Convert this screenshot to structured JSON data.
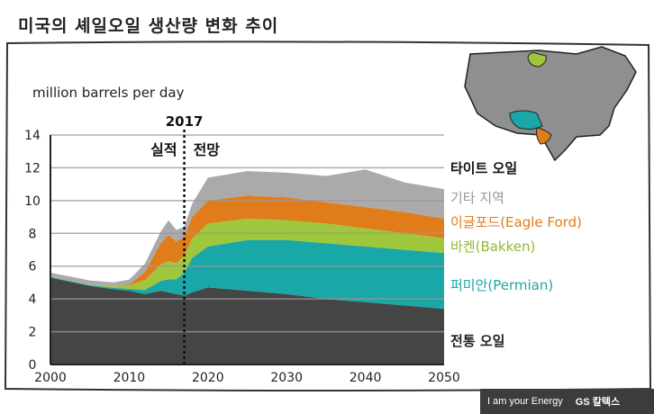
{
  "title": "미국의 셰일오일 생산량 변화 추이",
  "footer": {
    "tagline": "I am your Energy",
    "logo": "GS 칼텍스"
  },
  "chart_data": {
    "type": "area",
    "ylabel": "million barrels per day",
    "xlim": [
      2000,
      2050
    ],
    "ylim": [
      0,
      14
    ],
    "x_ticks": [
      2000,
      2010,
      2020,
      2030,
      2040,
      2050
    ],
    "y_ticks": [
      0,
      2,
      4,
      6,
      8,
      10,
      12,
      14
    ],
    "grid": true,
    "divider": {
      "x": 2017,
      "label": "2017",
      "left_label": "실적",
      "right_label": "전망"
    },
    "x": [
      2000,
      2005,
      2008,
      2010,
      2012,
      2014,
      2015,
      2016,
      2017,
      2018,
      2020,
      2025,
      2030,
      2035,
      2040,
      2045,
      2050
    ],
    "series": [
      {
        "name": "전통 오일",
        "color": "#454545",
        "values": [
          5.3,
          4.8,
          4.6,
          4.5,
          4.3,
          4.5,
          4.4,
          4.3,
          4.2,
          4.4,
          4.7,
          4.5,
          4.3,
          4.0,
          3.8,
          3.6,
          3.4
        ]
      },
      {
        "name": "퍼미안(Permian)",
        "color": "#1aa7a7",
        "values": [
          0.05,
          0.05,
          0.08,
          0.12,
          0.25,
          0.6,
          0.8,
          0.9,
          1.4,
          2.1,
          2.5,
          3.1,
          3.3,
          3.4,
          3.4,
          3.4,
          3.4
        ]
      },
      {
        "name": "바켄(Bakken)",
        "color": "#9ec73c",
        "values": [
          0.0,
          0.03,
          0.08,
          0.2,
          0.6,
          1.0,
          1.1,
          1.0,
          1.0,
          1.2,
          1.4,
          1.3,
          1.2,
          1.2,
          1.1,
          1.0,
          0.9
        ]
      },
      {
        "name": "이글포드(Eagle Ford)",
        "color": "#e07d1a",
        "values": [
          0.0,
          0.0,
          0.0,
          0.05,
          0.5,
          1.3,
          1.6,
          1.3,
          1.2,
          1.3,
          1.4,
          1.4,
          1.4,
          1.3,
          1.3,
          1.3,
          1.2
        ]
      },
      {
        "name": "기타 지역",
        "color": "#aaaaaa",
        "values": [
          0.25,
          0.25,
          0.25,
          0.3,
          0.5,
          0.7,
          0.9,
          0.7,
          0.6,
          0.8,
          1.4,
          1.5,
          1.5,
          1.6,
          2.3,
          1.8,
          1.8
        ]
      }
    ],
    "top_label": "타이트 오일"
  }
}
